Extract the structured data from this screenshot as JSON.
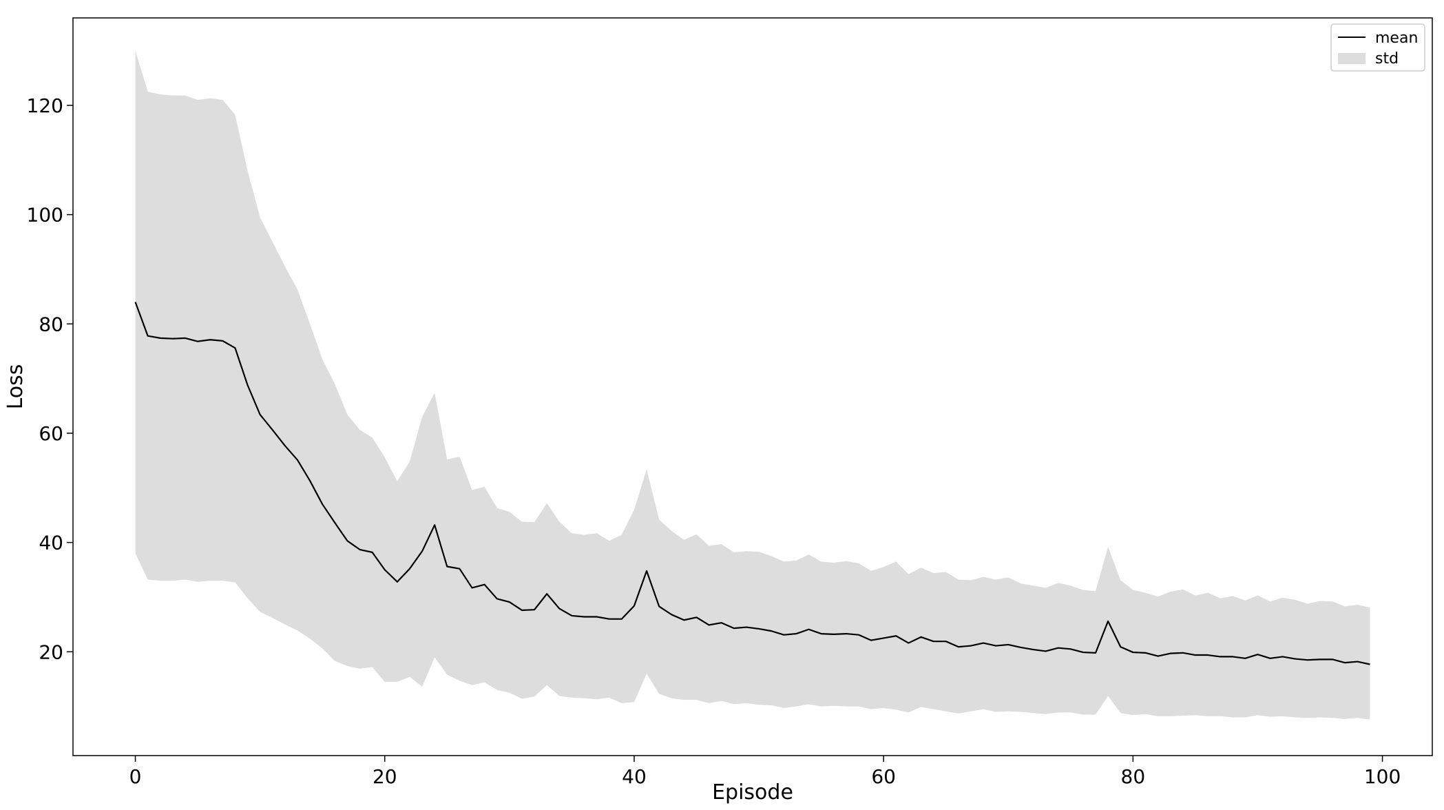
{
  "chart_data": {
    "type": "line",
    "title": "",
    "xlabel": "Episode",
    "ylabel": "Loss",
    "xlim": [
      -5,
      104
    ],
    "ylim": [
      1,
      136
    ],
    "xticks": [
      0,
      20,
      40,
      60,
      80,
      100
    ],
    "yticks": [
      20,
      40,
      60,
      80,
      100,
      120
    ],
    "grid": false,
    "legend_position": "top-right",
    "colors": {
      "mean": "#000000",
      "std": "#dddddd"
    },
    "series": [
      {
        "name": "mean",
        "x": [
          0,
          1,
          2,
          3,
          4,
          5,
          6,
          7,
          8,
          9,
          10,
          11,
          12,
          13,
          14,
          15,
          16,
          17,
          18,
          19,
          20,
          21,
          22,
          23,
          24,
          25,
          26,
          27,
          28,
          29,
          30,
          31,
          32,
          33,
          34,
          35,
          36,
          37,
          38,
          39,
          40,
          41,
          42,
          43,
          44,
          45,
          46,
          47,
          48,
          49,
          50,
          51,
          52,
          53,
          54,
          55,
          56,
          57,
          58,
          59,
          60,
          61,
          62,
          63,
          64,
          65,
          66,
          67,
          68,
          69,
          70,
          71,
          72,
          73,
          74,
          75,
          76,
          77,
          78,
          79,
          80,
          81,
          82,
          83,
          84,
          85,
          86,
          87,
          88,
          89,
          90,
          91,
          92,
          93,
          94,
          95,
          96,
          97,
          98,
          99
        ],
        "values": [
          84,
          77.8,
          77.4,
          77.3,
          77.4,
          76.8,
          77.1,
          76.9,
          75.6,
          68.8,
          63.4,
          60.6,
          57.7,
          55.1,
          51.3,
          47,
          43.6,
          40.3,
          38.7,
          38.2,
          35,
          32.8,
          35.2,
          38.4,
          43.2,
          35.6,
          35.2,
          31.7,
          32.3,
          29.7,
          29.1,
          27.6,
          27.7,
          30.6,
          27.9,
          26.6,
          26.4,
          26.4,
          26,
          26,
          28.4,
          34.8,
          28.3,
          26.8,
          25.8,
          26.3,
          24.9,
          25.3,
          24.3,
          24.5,
          24.2,
          23.8,
          23.1,
          23.3,
          24.1,
          23.3,
          23.2,
          23.3,
          23.1,
          22.1,
          22.5,
          22.9,
          21.6,
          22.7,
          21.9,
          21.9,
          20.9,
          21.1,
          21.6,
          21.1,
          21.3,
          20.8,
          20.4,
          20.1,
          20.7,
          20.5,
          19.9,
          19.8,
          25.6,
          20.9,
          19.9,
          19.8,
          19.2,
          19.7,
          19.8,
          19.4,
          19.4,
          19.1,
          19.1,
          18.8,
          19.5,
          18.8,
          19.1,
          18.7,
          18.5,
          18.6,
          18.6,
          18,
          18.2,
          17.7
        ]
      },
      {
        "name": "std",
        "x": [
          0,
          1,
          2,
          3,
          4,
          5,
          6,
          7,
          8,
          9,
          10,
          11,
          12,
          13,
          14,
          15,
          16,
          17,
          18,
          19,
          20,
          21,
          22,
          23,
          24,
          25,
          26,
          27,
          28,
          29,
          30,
          31,
          32,
          33,
          34,
          35,
          36,
          37,
          38,
          39,
          40,
          41,
          42,
          43,
          44,
          45,
          46,
          47,
          48,
          49,
          50,
          51,
          52,
          53,
          54,
          55,
          56,
          57,
          58,
          59,
          60,
          61,
          62,
          63,
          64,
          65,
          66,
          67,
          68,
          69,
          70,
          71,
          72,
          73,
          74,
          75,
          76,
          77,
          78,
          79,
          80,
          81,
          82,
          83,
          84,
          85,
          86,
          87,
          88,
          89,
          90,
          91,
          92,
          93,
          94,
          95,
          96,
          97,
          98,
          99
        ],
        "upper": [
          130,
          122.5,
          122,
          121.8,
          121.8,
          121,
          121.3,
          121,
          118.3,
          108,
          99.5,
          95,
          90.5,
          86.3,
          80,
          73.5,
          69,
          63.4,
          60.6,
          59.2,
          55.6,
          51.2,
          54.8,
          63,
          67.4,
          55.2,
          55.7,
          49.6,
          50.2,
          46.3,
          45.6,
          43.8,
          43.7,
          47.2,
          43.8,
          41.7,
          41.4,
          41.7,
          40.3,
          41.4,
          46,
          53.4,
          44.2,
          42.1,
          40.5,
          41.5,
          39.4,
          39.7,
          38.2,
          38.4,
          38.3,
          37.5,
          36.5,
          36.7,
          37.8,
          36.5,
          36.3,
          36.6,
          36.2,
          34.8,
          35.5,
          36.5,
          34.2,
          35.4,
          34.4,
          34.6,
          33.2,
          33.1,
          33.7,
          33.2,
          33.6,
          32.5,
          32.1,
          31.7,
          32.6,
          32.1,
          31.3,
          31.1,
          39.2,
          33.1,
          31.3,
          30.8,
          30.1,
          31,
          31.4,
          30.3,
          30.8,
          29.8,
          30.2,
          29.4,
          30.3,
          29.2,
          29.9,
          29.5,
          28.8,
          29.3,
          29.2,
          28.3,
          28.6,
          28.1
        ],
        "lower": [
          38,
          33.2,
          33,
          33,
          33.2,
          32.8,
          33,
          33,
          32.7,
          29.8,
          27.3,
          26.2,
          25,
          23.9,
          22.4,
          20.6,
          18.3,
          17.4,
          16.9,
          17.2,
          14.5,
          14.5,
          15.4,
          13.6,
          19,
          15.8,
          14.7,
          13.9,
          14.4,
          13,
          12.5,
          11.4,
          11.8,
          13.9,
          11.9,
          11.6,
          11.5,
          11.3,
          11.6,
          10.6,
          10.8,
          16,
          12.3,
          11.5,
          11.2,
          11.2,
          10.6,
          11,
          10.4,
          10.6,
          10.3,
          10.2,
          9.7,
          10,
          10.4,
          10,
          10.1,
          10,
          10,
          9.5,
          9.7,
          9.4,
          8.9,
          9.9,
          9.5,
          9.1,
          8.7,
          9.1,
          9.5,
          9,
          9.1,
          9,
          8.8,
          8.6,
          8.9,
          8.9,
          8.5,
          8.5,
          11.9,
          8.8,
          8.4,
          8.6,
          8.2,
          8.2,
          8.3,
          8.4,
          8.2,
          8.2,
          8,
          8,
          8.4,
          8.1,
          8.2,
          8,
          7.9,
          8,
          7.9,
          7.7,
          7.9,
          7.6
        ]
      }
    ]
  }
}
